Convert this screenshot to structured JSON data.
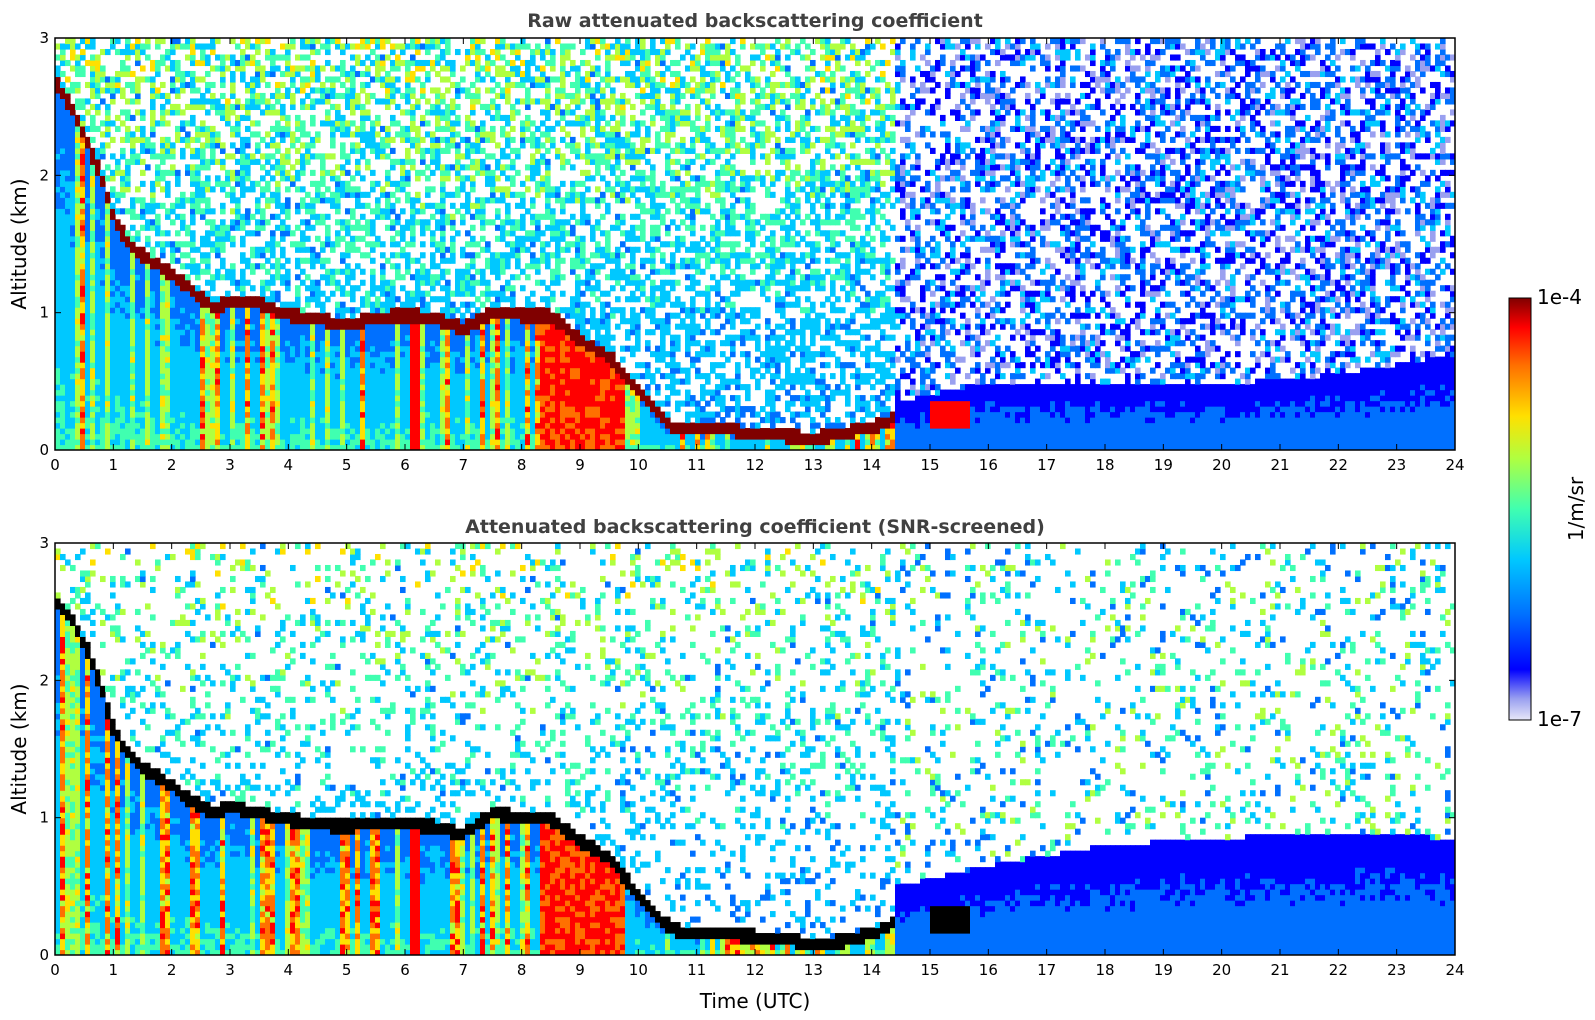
{
  "chart_data": [
    {
      "type": "heatmap",
      "title": "Raw attenuated backscattering coefficient",
      "xlabel": "",
      "ylabel": "Altitude (km)",
      "xlim": [
        0,
        24
      ],
      "ylim": [
        0,
        3
      ],
      "x_ticks": [
        "0",
        "1",
        "2",
        "3",
        "4",
        "5",
        "6",
        "7",
        "8",
        "9",
        "10",
        "11",
        "12",
        "13",
        "14",
        "15",
        "16",
        "17",
        "18",
        "19",
        "20",
        "21",
        "22",
        "23",
        "24"
      ],
      "y_ticks": [
        "0",
        "1",
        "2",
        "3"
      ],
      "scale": "log",
      "variant": "raw",
      "layer_top_km": [
        [
          0,
          2.7
        ],
        [
          0.3,
          2.5
        ],
        [
          0.6,
          2.2
        ],
        [
          0.8,
          2.0
        ],
        [
          1.0,
          1.7
        ],
        [
          1.3,
          1.5
        ],
        [
          1.6,
          1.4
        ],
        [
          2.0,
          1.3
        ],
        [
          2.3,
          1.2
        ],
        [
          2.7,
          1.05
        ],
        [
          3.0,
          1.1
        ],
        [
          3.5,
          1.08
        ],
        [
          4.0,
          1.0
        ],
        [
          4.5,
          0.97
        ],
        [
          5.0,
          0.93
        ],
        [
          5.5,
          0.98
        ],
        [
          6.0,
          1.0
        ],
        [
          6.5,
          0.98
        ],
        [
          7.0,
          0.9
        ],
        [
          7.5,
          1.02
        ],
        [
          8.0,
          1.0
        ],
        [
          8.5,
          1.0
        ],
        [
          9.0,
          0.82
        ],
        [
          9.5,
          0.7
        ],
        [
          10.0,
          0.45
        ],
        [
          10.3,
          0.3
        ],
        [
          10.6,
          0.18
        ],
        [
          11.0,
          0.16
        ],
        [
          11.5,
          0.17
        ],
        [
          12.0,
          0.13
        ],
        [
          12.5,
          0.12
        ],
        [
          13.0,
          0.1
        ],
        [
          13.5,
          0.14
        ],
        [
          14.0,
          0.18
        ],
        [
          14.4,
          0.25
        ]
      ],
      "boundary_layer_top_km": [
        [
          14.4,
          0.35
        ],
        [
          16,
          0.5
        ],
        [
          18,
          0.5
        ],
        [
          20,
          0.48
        ],
        [
          22,
          0.55
        ],
        [
          24,
          0.7
        ]
      ]
    },
    {
      "type": "heatmap",
      "title": "Attenuated backscattering coefficient (SNR-screened)",
      "xlabel": "Time (UTC)",
      "ylabel": "Altitude (km)",
      "xlim": [
        0,
        24
      ],
      "ylim": [
        0,
        3
      ],
      "x_ticks": [
        "0",
        "1",
        "2",
        "3",
        "4",
        "5",
        "6",
        "7",
        "8",
        "9",
        "10",
        "11",
        "12",
        "13",
        "14",
        "15",
        "16",
        "17",
        "18",
        "19",
        "20",
        "21",
        "22",
        "23",
        "24"
      ],
      "y_ticks": [
        "0",
        "1",
        "2",
        "3"
      ],
      "scale": "log",
      "variant": "screened",
      "layer_top_km": [
        [
          0,
          2.6
        ],
        [
          0.3,
          2.45
        ],
        [
          0.6,
          2.2
        ],
        [
          0.8,
          1.95
        ],
        [
          1.0,
          1.65
        ],
        [
          1.3,
          1.45
        ],
        [
          1.6,
          1.35
        ],
        [
          2.0,
          1.25
        ],
        [
          2.3,
          1.15
        ],
        [
          2.7,
          1.05
        ],
        [
          3.0,
          1.1
        ],
        [
          3.5,
          1.05
        ],
        [
          4.0,
          1.0
        ],
        [
          4.5,
          0.97
        ],
        [
          5.0,
          0.95
        ],
        [
          5.5,
          0.98
        ],
        [
          6.0,
          0.97
        ],
        [
          6.5,
          0.95
        ],
        [
          7.0,
          0.9
        ],
        [
          7.5,
          1.05
        ],
        [
          8.0,
          1.02
        ],
        [
          8.5,
          1.0
        ],
        [
          9.0,
          0.85
        ],
        [
          9.5,
          0.72
        ],
        [
          10.0,
          0.45
        ],
        [
          10.3,
          0.3
        ],
        [
          10.6,
          0.2
        ],
        [
          11.0,
          0.16
        ],
        [
          11.5,
          0.17
        ],
        [
          12.0,
          0.15
        ],
        [
          12.5,
          0.14
        ],
        [
          13.0,
          0.08
        ],
        [
          13.5,
          0.12
        ],
        [
          14.0,
          0.17
        ],
        [
          14.4,
          0.25
        ]
      ],
      "boundary_layer_top_km": [
        [
          14.4,
          0.5
        ],
        [
          16,
          0.65
        ],
        [
          18,
          0.8
        ],
        [
          20,
          0.85
        ],
        [
          22,
          0.9
        ],
        [
          24,
          0.85
        ]
      ]
    }
  ],
  "colorbar": {
    "label": "1/m/sr",
    "max_label": "1e-4",
    "min_label": "1e-7",
    "colormap": "jet",
    "colors": [
      "#e8e8f8",
      "#9aa0f0",
      "#0000ff",
      "#0070ff",
      "#00c8ff",
      "#40ffb0",
      "#b0ff40",
      "#ffe000",
      "#ff7000",
      "#ff0000",
      "#800000"
    ]
  }
}
